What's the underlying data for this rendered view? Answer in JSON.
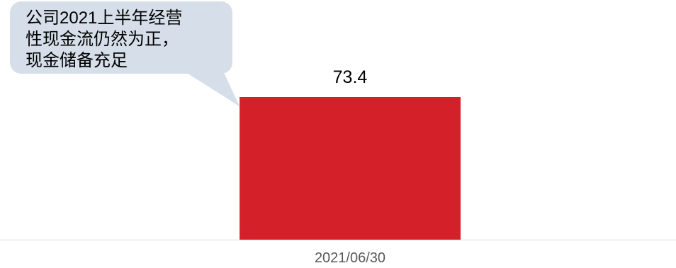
{
  "chart_data": {
    "type": "bar",
    "categories": [
      "2021/06/30"
    ],
    "values": [
      73.4
    ],
    "annotations": [
      {
        "lines": [
          "公司2021上半年经营",
          "性现金流仍然为正，",
          "现金储备充足"
        ]
      }
    ],
    "grid": false,
    "legend": false,
    "colors": {
      "bar": "#d42129",
      "callout": "#d6dfe9",
      "axis_line": "#d9d9d9",
      "tick_label": "#595959",
      "text": "#000000"
    }
  }
}
